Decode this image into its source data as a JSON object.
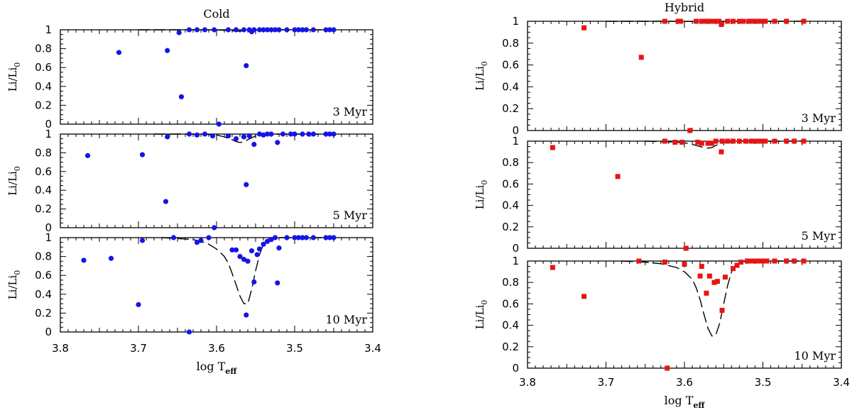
{
  "chart_data": [
    {
      "type": "scatter",
      "column": "left",
      "title": "Cold",
      "xlabel": "log T",
      "xlabel_sub": "eff",
      "xlim": [
        3.8,
        3.4
      ],
      "xticks": [
        3.8,
        3.7,
        3.6,
        3.5,
        3.4
      ],
      "marker": "circle",
      "color": "#1515e6",
      "panels": [
        {
          "annotation": "3 Myr",
          "ylabel": "Li/Li",
          "ylabel_sub": "0",
          "ylim": [
            0,
            1
          ],
          "yticks": [
            0,
            0.2,
            0.4,
            0.6,
            0.8,
            1
          ],
          "points": {
            "x": [
              3.725,
              3.663,
              3.648,
              3.645,
              3.635,
              3.625,
              3.615,
              3.603,
              3.597,
              3.585,
              3.575,
              3.565,
              3.562,
              3.558,
              3.555,
              3.552,
              3.545,
              3.54,
              3.535,
              3.53,
              3.525,
              3.52,
              3.51,
              3.5,
              3.495,
              3.49,
              3.485,
              3.476,
              3.46,
              3.455,
              3.45
            ],
            "y": [
              0.76,
              0.78,
              0.97,
              0.29,
              1.0,
              1.0,
              1.0,
              1.0,
              0.0,
              1.0,
              1.0,
              1.0,
              0.62,
              1.0,
              0.98,
              1.0,
              1.0,
              1.0,
              1.0,
              1.0,
              1.0,
              1.0,
              1.0,
              1.0,
              1.0,
              1.0,
              1.0,
              1.0,
              1.0,
              1.0,
              1.0
            ]
          },
          "model": {
            "x": [
              3.7,
              3.65,
              3.62,
              3.6,
              3.59,
              3.58,
              3.575,
              3.57,
              3.565,
              3.56,
              3.55,
              3.54,
              3.53,
              3.5,
              3.45
            ],
            "y": [
              1.0,
              1.0,
              1.0,
              0.998,
              0.995,
              0.99,
              0.985,
              0.985,
              0.99,
              0.995,
              0.998,
              1.0,
              1.0,
              1.0,
              1.0
            ]
          }
        },
        {
          "annotation": "5 Myr",
          "ylabel": "Li/Li",
          "ylabel_sub": "0",
          "ylim": [
            0,
            1
          ],
          "yticks": [
            0,
            0.2,
            0.4,
            0.6,
            0.8,
            1
          ],
          "points": {
            "x": [
              3.765,
              3.695,
              3.665,
              3.663,
              3.635,
              3.625,
              3.615,
              3.605,
              3.603,
              3.585,
              3.575,
              3.565,
              3.562,
              3.558,
              3.552,
              3.545,
              3.54,
              3.535,
              3.53,
              3.522,
              3.515,
              3.505,
              3.5,
              3.49,
              3.482,
              3.476,
              3.46,
              3.455,
              3.45
            ],
            "y": [
              0.77,
              0.78,
              0.28,
              0.97,
              1.0,
              0.99,
              1.0,
              0.98,
              0.0,
              0.98,
              0.95,
              0.97,
              0.46,
              0.98,
              0.89,
              1.0,
              0.99,
              1.0,
              1.0,
              0.91,
              1.0,
              1.0,
              1.0,
              1.0,
              1.0,
              1.0,
              1.0,
              1.0,
              1.0
            ]
          },
          "model": {
            "x": [
              3.68,
              3.62,
              3.6,
              3.59,
              3.58,
              3.575,
              3.57,
              3.565,
              3.56,
              3.555,
              3.55,
              3.54,
              3.53,
              3.5,
              3.45
            ],
            "y": [
              1.0,
              1.0,
              0.99,
              0.97,
              0.94,
              0.92,
              0.91,
              0.92,
              0.94,
              0.96,
              0.98,
              0.995,
              1.0,
              1.0,
              1.0
            ]
          }
        },
        {
          "annotation": "10 Myr",
          "ylabel": "Li/Li",
          "ylabel_sub": "0",
          "ylim": [
            0,
            1
          ],
          "yticks": [
            0,
            0.2,
            0.4,
            0.6,
            0.8,
            1
          ],
          "points": {
            "x": [
              3.77,
              3.735,
              3.7,
              3.695,
              3.655,
              3.635,
              3.625,
              3.62,
              3.61,
              3.58,
              3.575,
              3.57,
              3.565,
              3.562,
              3.56,
              3.555,
              3.552,
              3.548,
              3.545,
              3.54,
              3.535,
              3.53,
              3.525,
              3.522,
              3.52,
              3.51,
              3.5,
              3.495,
              3.49,
              3.485,
              3.476,
              3.46,
              3.455,
              3.45
            ],
            "y": [
              0.76,
              0.78,
              0.29,
              0.97,
              1.0,
              0.0,
              0.95,
              0.97,
              1.0,
              0.87,
              0.87,
              0.8,
              0.77,
              0.18,
              0.75,
              0.86,
              0.53,
              0.82,
              0.88,
              0.93,
              0.96,
              0.98,
              1.0,
              0.52,
              0.89,
              1.0,
              1.0,
              1.0,
              1.0,
              1.0,
              1.0,
              1.0,
              1.0,
              1.0
            ]
          },
          "model": {
            "x": [
              3.67,
              3.65,
              3.63,
              3.62,
              3.61,
              3.6,
              3.59,
              3.585,
              3.58,
              3.575,
              3.57,
              3.565,
              3.56,
              3.555,
              3.55,
              3.545,
              3.54,
              3.535,
              3.53,
              3.52,
              3.5,
              3.45
            ],
            "y": [
              1.0,
              0.99,
              0.98,
              0.96,
              0.93,
              0.88,
              0.8,
              0.73,
              0.62,
              0.5,
              0.38,
              0.3,
              0.3,
              0.45,
              0.65,
              0.82,
              0.93,
              0.98,
              0.995,
              1.0,
              1.0,
              1.0
            ]
          }
        }
      ]
    },
    {
      "type": "scatter",
      "column": "right",
      "title": "Hybrid",
      "xlabel": "log T",
      "xlabel_sub": "eff",
      "xlim": [
        3.8,
        3.4
      ],
      "xticks": [
        3.8,
        3.7,
        3.6,
        3.5,
        3.4
      ],
      "marker": "square",
      "color": "#e81414",
      "panels": [
        {
          "annotation": "3 Myr",
          "ylabel": "Li/Li",
          "ylabel_sub": "0",
          "ylim": [
            0,
            1
          ],
          "yticks": [
            0,
            0.2,
            0.4,
            0.6,
            0.8,
            1
          ],
          "points": {
            "x": [
              3.728,
              3.655,
              3.625,
              3.608,
              3.605,
              3.593,
              3.585,
              3.578,
              3.573,
              3.568,
              3.562,
              3.556,
              3.553,
              3.545,
              3.538,
              3.53,
              3.525,
              3.518,
              3.512,
              3.508,
              3.503,
              3.5,
              3.497,
              3.485,
              3.47,
              3.448
            ],
            "y": [
              0.94,
              0.67,
              1.0,
              1.0,
              1.0,
              0.0,
              1.0,
              1.0,
              1.0,
              1.0,
              1.0,
              1.0,
              0.97,
              1.0,
              1.0,
              1.0,
              1.0,
              1.0,
              1.0,
              1.0,
              1.0,
              1.0,
              1.0,
              1.0,
              1.0,
              1.0
            ]
          },
          "model": {
            "x": [
              3.7,
              3.65,
              3.62,
              3.6,
              3.58,
              3.57,
              3.56,
              3.55,
              3.54,
              3.5,
              3.45
            ],
            "y": [
              1.0,
              1.0,
              1.0,
              0.999,
              0.998,
              0.997,
              0.998,
              0.999,
              1.0,
              1.0,
              1.0
            ]
          }
        },
        {
          "annotation": "5 Myr",
          "ylabel": "Li/Li",
          "ylabel_sub": "0",
          "ylim": [
            0,
            1
          ],
          "yticks": [
            0,
            0.2,
            0.4,
            0.6,
            0.8,
            1
          ],
          "points": {
            "x": [
              3.768,
              3.685,
              3.625,
              3.612,
              3.603,
              3.598,
              3.583,
              3.578,
              3.57,
              3.565,
              3.56,
              3.553,
              3.552,
              3.545,
              3.538,
              3.53,
              3.522,
              3.515,
              3.51,
              3.505,
              3.5,
              3.497,
              3.485,
              3.47,
              3.46,
              3.448
            ],
            "y": [
              0.94,
              0.67,
              1.0,
              0.99,
              0.99,
              0.0,
              0.99,
              0.98,
              0.98,
              0.98,
              1.0,
              0.9,
              1.0,
              1.0,
              1.0,
              1.0,
              1.0,
              1.0,
              1.0,
              1.0,
              1.0,
              1.0,
              1.0,
              1.0,
              1.0,
              1.0
            ]
          },
          "model": {
            "x": [
              3.65,
              3.62,
              3.6,
              3.59,
              3.58,
              3.575,
              3.57,
              3.565,
              3.56,
              3.55,
              3.54,
              3.53,
              3.5,
              3.45
            ],
            "y": [
              1.0,
              0.995,
              0.985,
              0.97,
              0.95,
              0.94,
              0.935,
              0.94,
              0.96,
              0.985,
              0.995,
              1.0,
              1.0,
              1.0
            ]
          }
        },
        {
          "annotation": "10 Myr",
          "ylabel": "Li/Li",
          "ylabel_sub": "0",
          "ylim": [
            0,
            1
          ],
          "yticks": [
            0,
            0.2,
            0.4,
            0.6,
            0.8,
            1
          ],
          "points": {
            "x": [
              3.768,
              3.728,
              3.658,
              3.625,
              3.622,
              3.6,
              3.58,
              3.578,
              3.572,
              3.568,
              3.562,
              3.558,
              3.552,
              3.548,
              3.538,
              3.533,
              3.528,
              3.52,
              3.515,
              3.51,
              3.505,
              3.5,
              3.495,
              3.485,
              3.47,
              3.46,
              3.448
            ],
            "y": [
              0.94,
              0.67,
              1.0,
              0.99,
              0.0,
              0.97,
              0.86,
              0.95,
              0.7,
              0.86,
              0.8,
              0.81,
              0.54,
              0.85,
              0.93,
              0.96,
              0.99,
              1.0,
              1.0,
              1.0,
              1.0,
              1.0,
              1.0,
              1.0,
              1.0,
              1.0,
              1.0
            ]
          },
          "model": {
            "x": [
              3.68,
              3.65,
              3.63,
              3.61,
              3.6,
              3.59,
              3.585,
              3.58,
              3.575,
              3.57,
              3.565,
              3.56,
              3.555,
              3.55,
              3.545,
              3.54,
              3.535,
              3.53,
              3.52,
              3.5,
              3.45
            ],
            "y": [
              1.0,
              0.99,
              0.975,
              0.94,
              0.9,
              0.83,
              0.75,
              0.64,
              0.5,
              0.37,
              0.3,
              0.31,
              0.42,
              0.6,
              0.77,
              0.9,
              0.96,
              0.99,
              1.0,
              1.0,
              1.0
            ]
          }
        }
      ]
    }
  ]
}
